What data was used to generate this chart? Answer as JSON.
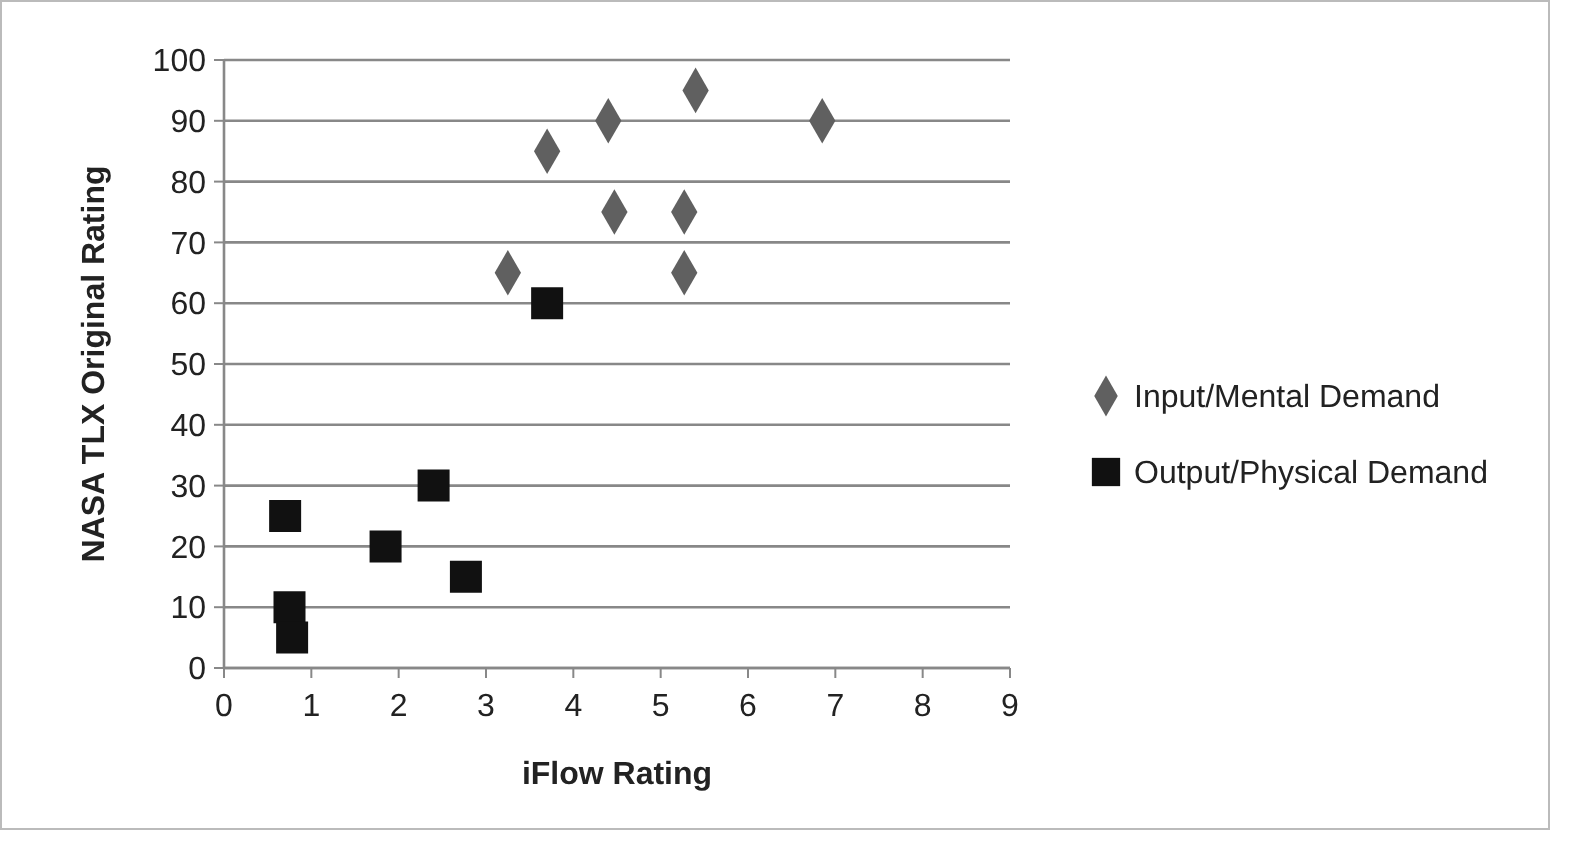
{
  "chart_data": {
    "type": "scatter",
    "xlabel": "iFlow Rating",
    "ylabel": "NASA TLX Original Rating",
    "xlim": [
      0,
      9
    ],
    "xticks": [
      0,
      1,
      2,
      3,
      4,
      5,
      6,
      7,
      8,
      9
    ],
    "ylim": [
      0,
      100
    ],
    "yticks": [
      0,
      10,
      20,
      30,
      40,
      50,
      60,
      70,
      80,
      90,
      100
    ],
    "grid": "y",
    "legend": "right",
    "series": [
      {
        "name": "Input/Mental Demand",
        "color": "#606060",
        "marker": "diamond",
        "x": [
          3.25,
          3.7,
          4.4,
          4.47,
          5.27,
          5.27,
          5.4,
          6.85
        ],
        "values": [
          65,
          85,
          90,
          75,
          75,
          65,
          95,
          90
        ]
      },
      {
        "name": "Output/Physical Demand",
        "color": "#111111",
        "marker": "square",
        "x": [
          0.7,
          0.75,
          0.78,
          1.85,
          2.4,
          2.77,
          3.7
        ],
        "values": [
          25,
          10,
          5,
          20,
          30,
          15,
          60
        ]
      }
    ]
  }
}
